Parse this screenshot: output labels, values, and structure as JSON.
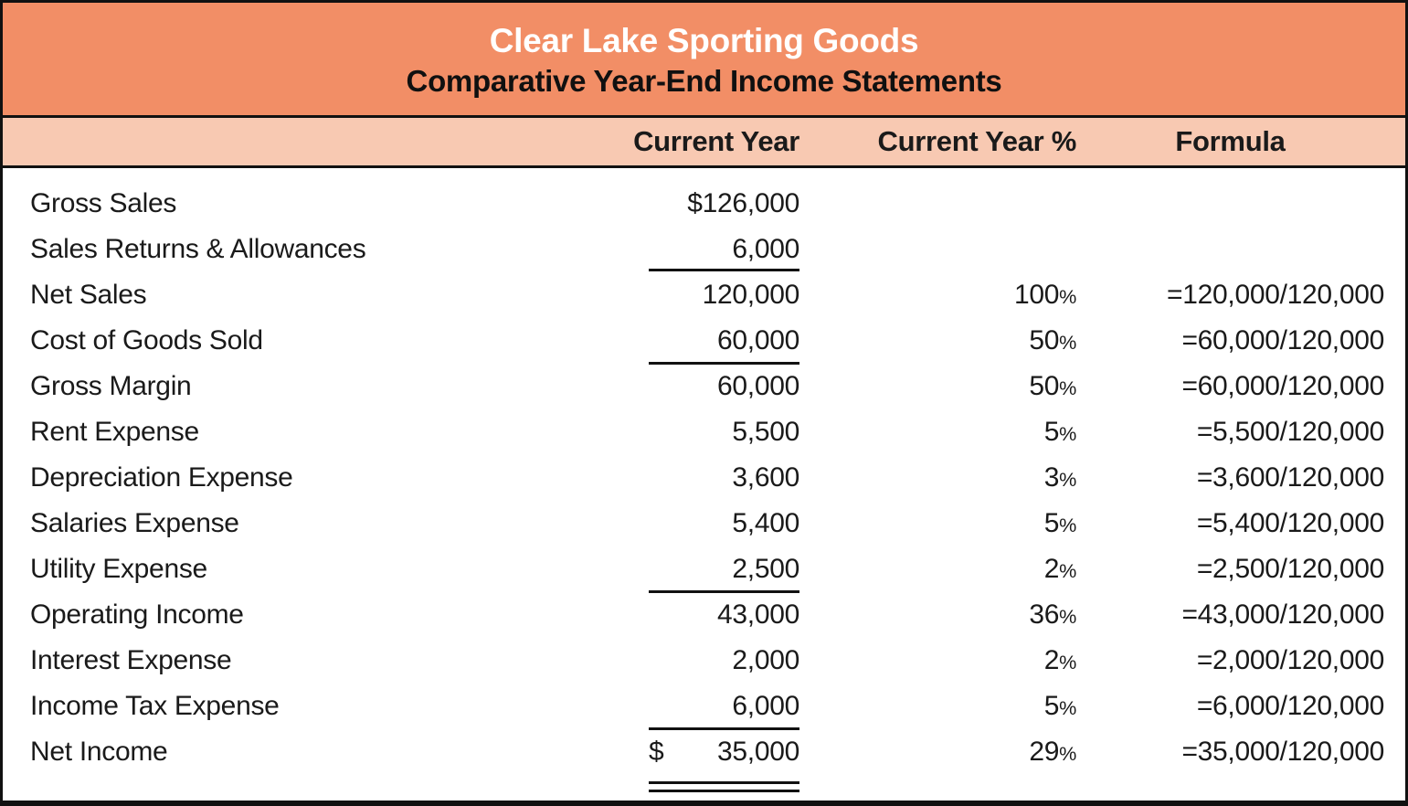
{
  "header": {
    "title": "Clear Lake Sporting Goods",
    "subtitle": "Comparative Year-End Income Statements"
  },
  "columns": {
    "current_year": "Current Year",
    "current_year_pct": "Current Year %",
    "formula": "Formula"
  },
  "strings": {
    "percent_sign": "%"
  },
  "colors": {
    "title_band_bg": "#F28E66",
    "colhead_band_bg": "#F8C9B2",
    "border": "#111111",
    "title_text": "#FFFFFF",
    "body_text": "#1A1A1A"
  },
  "rows": [
    {
      "label": "Gross Sales",
      "amount": "$126,000",
      "pct": "",
      "formula": "",
      "underline": "none"
    },
    {
      "label": "Sales Returns & Allowances",
      "amount": "6,000",
      "pct": "",
      "formula": "",
      "underline": "single"
    },
    {
      "label": "Net Sales",
      "amount": "120,000",
      "pct": "100",
      "formula": "=120,000/120,000",
      "underline": "none"
    },
    {
      "label": "Cost of Goods Sold",
      "amount": "60,000",
      "pct": "50",
      "formula": "=60,000/120,000",
      "underline": "single"
    },
    {
      "label": "Gross Margin",
      "amount": "60,000",
      "pct": "50",
      "formula": "=60,000/120,000",
      "underline": "none"
    },
    {
      "label": "Rent Expense",
      "amount": "5,500",
      "pct": "5",
      "formula": "=5,500/120,000",
      "underline": "none"
    },
    {
      "label": "Depreciation Expense",
      "amount": "3,600",
      "pct": "3",
      "formula": "=3,600/120,000",
      "underline": "none"
    },
    {
      "label": "Salaries Expense",
      "amount": "5,400",
      "pct": "5",
      "formula": "=5,400/120,000",
      "underline": "none"
    },
    {
      "label": "Utility Expense",
      "amount": "2,500",
      "pct": "2",
      "formula": "=2,500/120,000",
      "underline": "single"
    },
    {
      "label": "Operating Income",
      "amount": "43,000",
      "pct": "36",
      "formula": "=43,000/120,000",
      "underline": "none"
    },
    {
      "label": "Interest Expense",
      "amount": "2,000",
      "pct": "2",
      "formula": "=2,000/120,000",
      "underline": "none"
    },
    {
      "label": "Income Tax Expense",
      "amount": "6,000",
      "pct": "5",
      "formula": "=6,000/120,000",
      "underline": "single"
    },
    {
      "label": "Net Income",
      "amount": "35,000",
      "amount_prefix": "$",
      "pct": "29",
      "formula": "=35,000/120,000",
      "underline": "double"
    }
  ]
}
